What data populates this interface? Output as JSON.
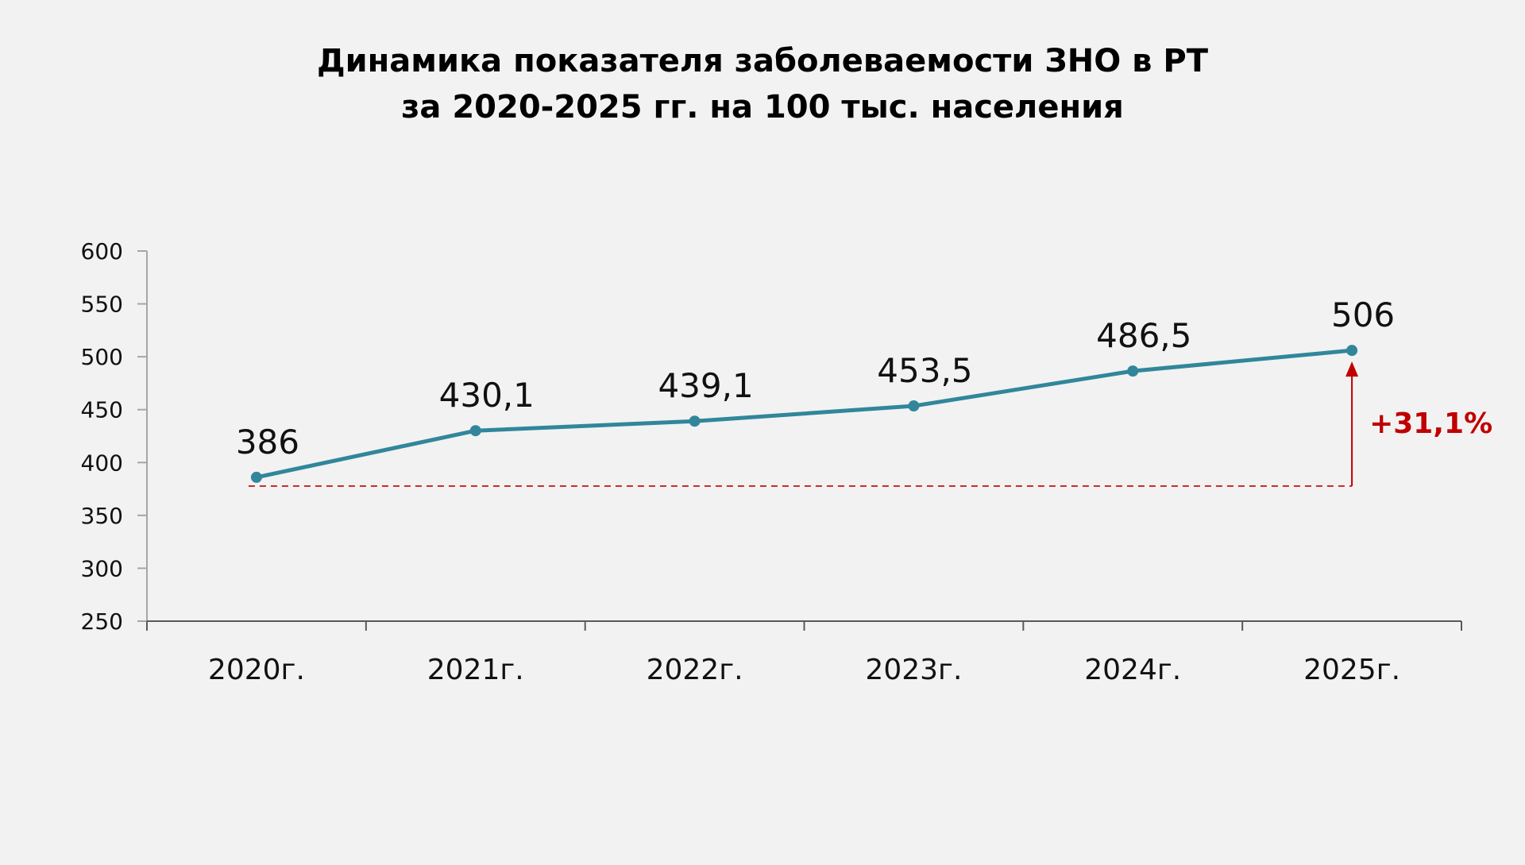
{
  "chart_data": {
    "type": "line",
    "title": "Динамика показателя заболеваемости ЗНО в РТ",
    "subtitle": "за 2020-2025 гг. на 100 тыс. населения",
    "categories": [
      "2020г.",
      "2021г.",
      "2022г.",
      "2023г.",
      "2024г.",
      "2025г."
    ],
    "values": [
      386,
      430.1,
      439.1,
      453.5,
      486.5,
      506
    ],
    "data_labels": [
      "386",
      "430,1",
      "439,1",
      "453,5",
      "486,5",
      "506"
    ],
    "ylim": [
      250,
      600
    ],
    "yticks": [
      250,
      300,
      350,
      400,
      450,
      500,
      550,
      600
    ],
    "grid": false,
    "legend": "none",
    "annotation": {
      "text": "+31,1%",
      "from_value": 386,
      "to_value": 506,
      "color": "#c00000"
    },
    "colors": {
      "line": "#31869b",
      "annotation": "#c00000",
      "background": "#f2f2f2"
    }
  }
}
